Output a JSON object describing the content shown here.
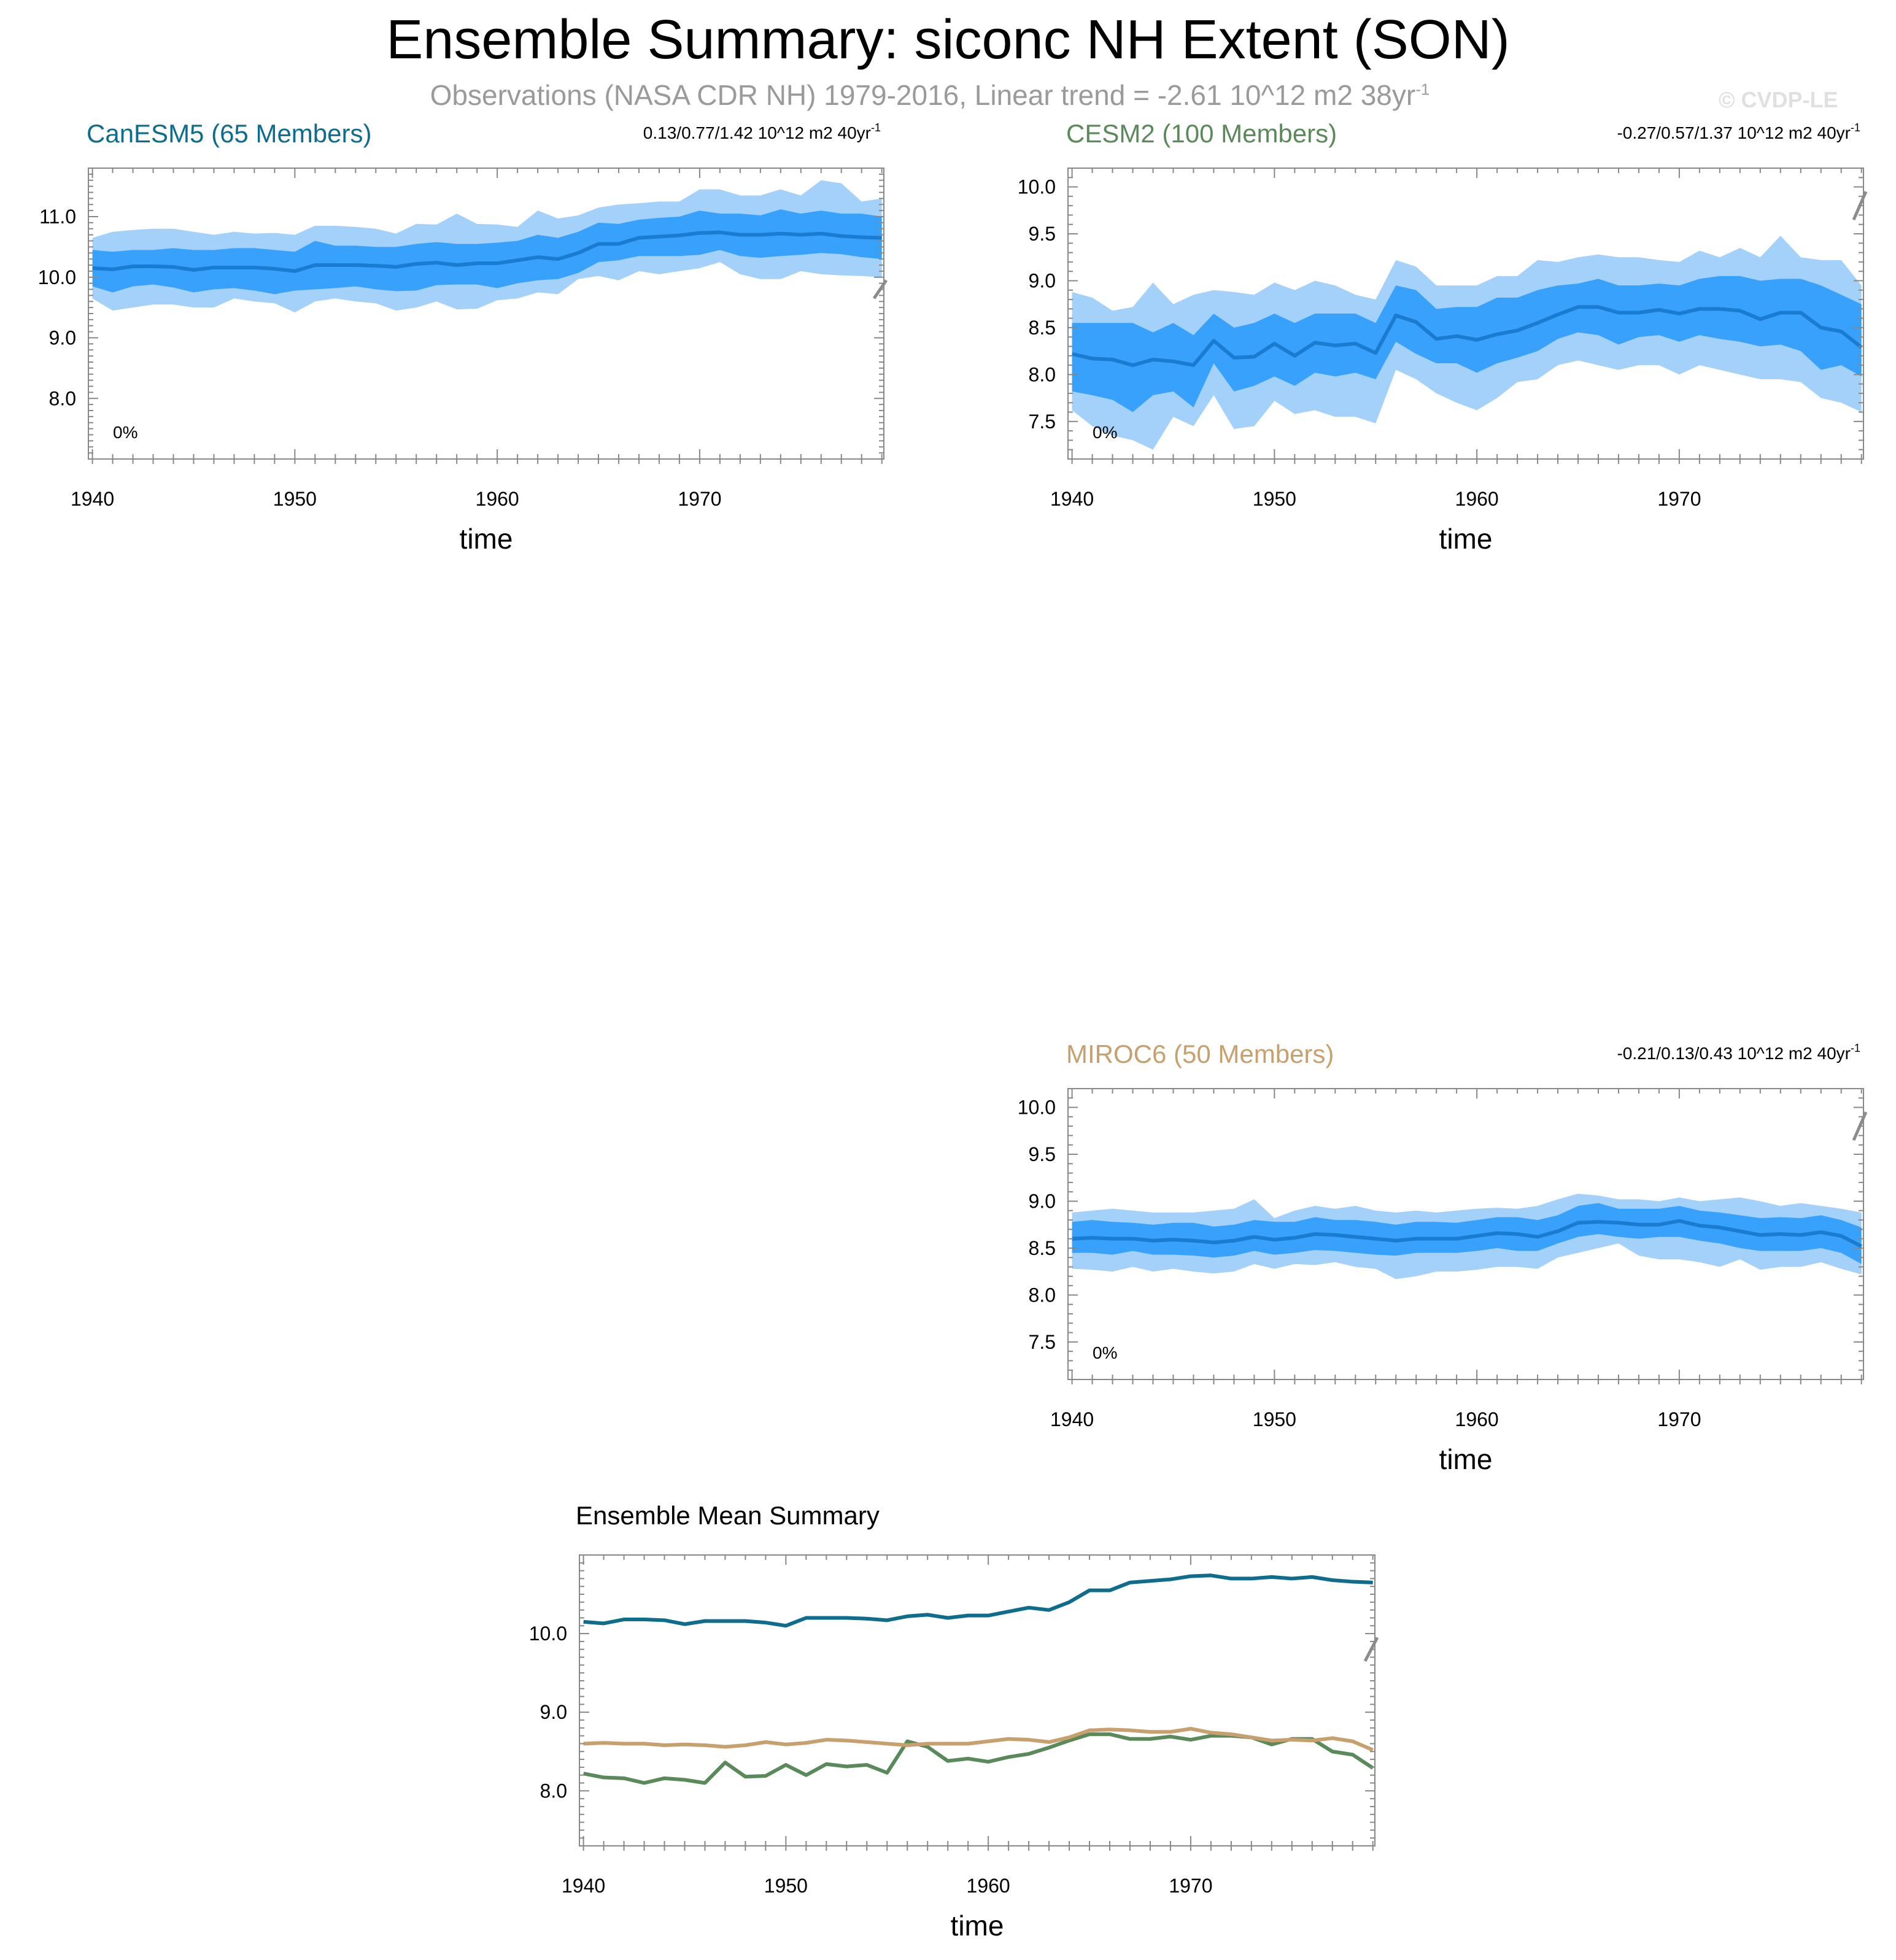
{
  "title": "Ensemble Summary: siconc NH Extent (SON)",
  "subtitle": {
    "text": "Observations (NASA CDR NH) 1979-2016, Linear trend = -2.61 10^12 m2 38yr",
    "sup": "-1"
  },
  "watermark": "© CVDP-LE",
  "chart_data": [
    {
      "type": "area",
      "title": "CanESM5 (65 Members)",
      "title_color": "#0e6c8d",
      "trend_label": "0.13/0.77/1.42 10^12 m2 40yr",
      "trend_sup": "-1",
      "percent_label": "0%",
      "xlabel": "time",
      "ylabel": "",
      "xlim": [
        1939.8,
        1979.1
      ],
      "ylim": [
        7.0,
        11.8
      ],
      "xticks": [
        1940,
        1950,
        1960,
        1970
      ],
      "xtick_labels": [
        "1940",
        "1950",
        "1960",
        "1970"
      ],
      "yticks": [
        8.0,
        9.0,
        10.0,
        11.0
      ],
      "ytick_labels": [
        "8.0",
        "9.0",
        "10.0",
        "11.0"
      ],
      "obs_trend_marker": [
        9.65,
        9.95
      ],
      "x": [
        1940,
        1941,
        1942,
        1943,
        1944,
        1945,
        1946,
        1947,
        1948,
        1949,
        1950,
        1951,
        1952,
        1953,
        1954,
        1955,
        1956,
        1957,
        1958,
        1959,
        1960,
        1961,
        1962,
        1963,
        1964,
        1965,
        1966,
        1967,
        1968,
        1969,
        1970,
        1971,
        1972,
        1973,
        1974,
        1975,
        1976,
        1977,
        1978,
        1979
      ],
      "mean": [
        10.15,
        10.13,
        10.18,
        10.18,
        10.17,
        10.12,
        10.16,
        10.16,
        10.16,
        10.14,
        10.1,
        10.2,
        10.2,
        10.2,
        10.19,
        10.17,
        10.22,
        10.24,
        10.2,
        10.23,
        10.23,
        10.28,
        10.33,
        10.3,
        10.4,
        10.55,
        10.55,
        10.65,
        10.67,
        10.69,
        10.73,
        10.74,
        10.7,
        10.7,
        10.72,
        10.7,
        10.72,
        10.68,
        10.66,
        10.65
      ],
      "p10": [
        9.85,
        9.75,
        9.85,
        9.88,
        9.83,
        9.75,
        9.8,
        9.82,
        9.78,
        9.72,
        9.78,
        9.8,
        9.82,
        9.85,
        9.8,
        9.77,
        9.78,
        9.87,
        9.88,
        9.88,
        9.82,
        9.9,
        9.95,
        9.97,
        10.07,
        10.25,
        10.28,
        10.35,
        10.35,
        10.35,
        10.37,
        10.45,
        10.35,
        10.32,
        10.35,
        10.37,
        10.4,
        10.38,
        10.33,
        10.3
      ],
      "p90": [
        10.45,
        10.42,
        10.45,
        10.45,
        10.48,
        10.45,
        10.45,
        10.48,
        10.48,
        10.45,
        10.42,
        10.6,
        10.52,
        10.52,
        10.5,
        10.5,
        10.55,
        10.58,
        10.55,
        10.55,
        10.57,
        10.6,
        10.7,
        10.65,
        10.75,
        10.9,
        10.88,
        10.95,
        10.98,
        11.0,
        11.1,
        11.05,
        11.05,
        11.02,
        11.12,
        11.05,
        11.1,
        11.05,
        11.05,
        11.0
      ],
      "min": [
        9.65,
        9.45,
        9.5,
        9.55,
        9.55,
        9.5,
        9.5,
        9.65,
        9.6,
        9.57,
        9.42,
        9.6,
        9.65,
        9.6,
        9.57,
        9.45,
        9.5,
        9.6,
        9.47,
        9.48,
        9.62,
        9.65,
        9.75,
        9.72,
        9.97,
        10.02,
        9.95,
        10.1,
        10.05,
        10.1,
        10.15,
        10.25,
        10.05,
        9.97,
        9.97,
        10.1,
        10.05,
        10.03,
        10.02,
        10.0
      ],
      "max": [
        10.65,
        10.75,
        10.78,
        10.8,
        10.8,
        10.75,
        10.7,
        10.75,
        10.72,
        10.73,
        10.7,
        10.85,
        10.85,
        10.83,
        10.8,
        10.72,
        10.88,
        10.87,
        11.05,
        10.88,
        10.87,
        10.83,
        11.1,
        10.97,
        11.02,
        11.15,
        11.2,
        11.22,
        11.25,
        11.25,
        11.45,
        11.45,
        11.35,
        11.35,
        11.45,
        11.35,
        11.6,
        11.55,
        11.25,
        11.3
      ]
    },
    {
      "type": "area",
      "title": "CESM2 (100 Members)",
      "title_color": "#5a8a5a",
      "trend_label": "-0.27/0.57/1.37 10^12 m2 40yr",
      "trend_sup": "-1",
      "percent_label": "0%",
      "xlabel": "time",
      "ylabel": "",
      "xlim": [
        1939.8,
        1979.1
      ],
      "ylim": [
        7.1,
        10.2
      ],
      "xticks": [
        1940,
        1950,
        1960,
        1970
      ],
      "xtick_labels": [
        "1940",
        "1950",
        "1960",
        "1970"
      ],
      "yticks": [
        7.5,
        8.0,
        8.5,
        9.0,
        9.5,
        10.0
      ],
      "ytick_labels": [
        "7.5",
        "8.0",
        "8.5",
        "9.0",
        "9.5",
        "10.0"
      ],
      "obs_trend_marker": [
        9.65,
        9.95
      ],
      "x": [
        1940,
        1941,
        1942,
        1943,
        1944,
        1945,
        1946,
        1947,
        1948,
        1949,
        1950,
        1951,
        1952,
        1953,
        1954,
        1955,
        1956,
        1957,
        1958,
        1959,
        1960,
        1961,
        1962,
        1963,
        1964,
        1965,
        1966,
        1967,
        1968,
        1969,
        1970,
        1971,
        1972,
        1973,
        1974,
        1975,
        1976,
        1977,
        1978,
        1979
      ],
      "mean": [
        8.22,
        8.17,
        8.16,
        8.1,
        8.16,
        8.14,
        8.1,
        8.36,
        8.18,
        8.19,
        8.33,
        8.2,
        8.34,
        8.31,
        8.33,
        8.23,
        8.63,
        8.56,
        8.38,
        8.41,
        8.37,
        8.43,
        8.47,
        8.55,
        8.64,
        8.72,
        8.72,
        8.66,
        8.66,
        8.69,
        8.65,
        8.7,
        8.7,
        8.68,
        8.59,
        8.66,
        8.66,
        8.5,
        8.46,
        8.29
      ],
      "p10": [
        7.82,
        7.78,
        7.73,
        7.6,
        7.78,
        7.82,
        7.65,
        8.12,
        7.82,
        7.88,
        7.98,
        7.88,
        8.02,
        7.98,
        8.02,
        7.95,
        8.35,
        8.22,
        8.12,
        8.12,
        8.02,
        8.12,
        8.18,
        8.25,
        8.38,
        8.45,
        8.42,
        8.32,
        8.4,
        8.42,
        8.35,
        8.42,
        8.38,
        8.35,
        8.3,
        8.32,
        8.25,
        8.05,
        8.1,
        7.98
      ],
      "p90": [
        8.55,
        8.55,
        8.55,
        8.55,
        8.45,
        8.55,
        8.42,
        8.65,
        8.5,
        8.55,
        8.65,
        8.55,
        8.65,
        8.65,
        8.65,
        8.55,
        8.95,
        8.9,
        8.7,
        8.72,
        8.72,
        8.82,
        8.82,
        8.9,
        8.95,
        8.97,
        9.02,
        8.95,
        8.95,
        8.97,
        8.95,
        9.02,
        9.05,
        9.05,
        9.0,
        9.02,
        9.02,
        8.95,
        8.85,
        8.75
      ],
      "min": [
        7.62,
        7.45,
        7.35,
        7.3,
        7.2,
        7.55,
        7.45,
        7.78,
        7.42,
        7.45,
        7.72,
        7.58,
        7.62,
        7.55,
        7.55,
        7.48,
        8.05,
        7.95,
        7.8,
        7.7,
        7.62,
        7.75,
        7.92,
        7.95,
        8.1,
        8.15,
        8.1,
        8.05,
        8.1,
        8.1,
        8.0,
        8.1,
        8.05,
        8.0,
        7.95,
        7.95,
        7.92,
        7.75,
        7.7,
        7.6
      ],
      "max": [
        8.88,
        8.82,
        8.68,
        8.72,
        8.98,
        8.75,
        8.85,
        8.9,
        8.88,
        8.85,
        8.98,
        8.9,
        9.0,
        8.95,
        8.85,
        8.8,
        9.22,
        9.15,
        8.95,
        8.95,
        8.95,
        9.05,
        9.05,
        9.22,
        9.2,
        9.25,
        9.28,
        9.25,
        9.25,
        9.22,
        9.2,
        9.32,
        9.25,
        9.35,
        9.25,
        9.48,
        9.25,
        9.22,
        9.22,
        8.95
      ]
    },
    {
      "type": "area",
      "title": "MIROC6 (50 Members)",
      "title_color": "#c8a06e",
      "trend_label": "-0.21/0.13/0.43 10^12 m2 40yr",
      "trend_sup": "-1",
      "percent_label": "0%",
      "xlabel": "time",
      "ylabel": "",
      "xlim": [
        1939.8,
        1979.1
      ],
      "ylim": [
        7.1,
        10.2
      ],
      "xticks": [
        1940,
        1950,
        1960,
        1970
      ],
      "xtick_labels": [
        "1940",
        "1950",
        "1960",
        "1970"
      ],
      "yticks": [
        7.5,
        8.0,
        8.5,
        9.0,
        9.5,
        10.0
      ],
      "ytick_labels": [
        "7.5",
        "8.0",
        "8.5",
        "9.0",
        "9.5",
        "10.0"
      ],
      "obs_trend_marker": [
        9.65,
        9.95
      ],
      "x": [
        1940,
        1941,
        1942,
        1943,
        1944,
        1945,
        1946,
        1947,
        1948,
        1949,
        1950,
        1951,
        1952,
        1953,
        1954,
        1955,
        1956,
        1957,
        1958,
        1959,
        1960,
        1961,
        1962,
        1963,
        1964,
        1965,
        1966,
        1967,
        1968,
        1969,
        1970,
        1971,
        1972,
        1973,
        1974,
        1975,
        1976,
        1977,
        1978,
        1979
      ],
      "mean": [
        8.6,
        8.61,
        8.6,
        8.6,
        8.58,
        8.59,
        8.58,
        8.56,
        8.58,
        8.62,
        8.59,
        8.61,
        8.65,
        8.64,
        8.62,
        8.6,
        8.58,
        8.6,
        8.6,
        8.6,
        8.63,
        8.66,
        8.65,
        8.62,
        8.68,
        8.77,
        8.78,
        8.77,
        8.75,
        8.75,
        8.79,
        8.74,
        8.72,
        8.68,
        8.64,
        8.65,
        8.64,
        8.67,
        8.63,
        8.52
      ],
      "p10": [
        8.45,
        8.45,
        8.43,
        8.47,
        8.43,
        8.43,
        8.42,
        8.4,
        8.42,
        8.47,
        8.43,
        8.45,
        8.48,
        8.47,
        8.45,
        8.43,
        8.42,
        8.45,
        8.45,
        8.45,
        8.47,
        8.5,
        8.47,
        8.47,
        8.55,
        8.62,
        8.65,
        8.62,
        8.6,
        8.62,
        8.62,
        8.58,
        8.55,
        8.5,
        8.47,
        8.47,
        8.47,
        8.5,
        8.45,
        8.33
      ],
      "p90": [
        8.78,
        8.8,
        8.78,
        8.77,
        8.75,
        8.77,
        8.77,
        8.73,
        8.75,
        8.8,
        8.78,
        8.78,
        8.83,
        8.8,
        8.8,
        8.78,
        8.75,
        8.78,
        8.78,
        8.77,
        8.8,
        8.83,
        8.83,
        8.8,
        8.85,
        8.95,
        8.98,
        8.92,
        8.92,
        8.92,
        8.95,
        8.9,
        8.88,
        8.85,
        8.82,
        8.83,
        8.82,
        8.85,
        8.8,
        8.72
      ],
      "min": [
        8.28,
        8.27,
        8.25,
        8.3,
        8.25,
        8.28,
        8.25,
        8.23,
        8.25,
        8.33,
        8.28,
        8.33,
        8.32,
        8.35,
        8.3,
        8.28,
        8.17,
        8.2,
        8.25,
        8.25,
        8.27,
        8.3,
        8.3,
        8.28,
        8.4,
        8.45,
        8.5,
        8.55,
        8.42,
        8.38,
        8.38,
        8.35,
        8.3,
        8.38,
        8.27,
        8.3,
        8.3,
        8.35,
        8.28,
        8.22
      ],
      "max": [
        8.88,
        8.9,
        8.92,
        8.9,
        8.88,
        8.88,
        8.88,
        8.9,
        8.92,
        9.02,
        8.82,
        8.9,
        8.95,
        8.92,
        8.95,
        8.9,
        8.88,
        8.9,
        8.88,
        8.9,
        8.92,
        8.93,
        8.92,
        8.95,
        9.02,
        9.08,
        9.06,
        9.02,
        9.02,
        9.0,
        9.04,
        9.0,
        9.02,
        9.04,
        9.0,
        8.95,
        8.98,
        8.95,
        8.92,
        8.88
      ]
    },
    {
      "type": "line",
      "title": "Ensemble Mean Summary",
      "xlabel": "time",
      "ylabel": "",
      "xlim": [
        1939.8,
        1979.1
      ],
      "ylim": [
        7.3,
        11.0
      ],
      "xticks": [
        1940,
        1950,
        1960,
        1970
      ],
      "xtick_labels": [
        "1940",
        "1950",
        "1960",
        "1970"
      ],
      "yticks": [
        8.0,
        9.0,
        10.0
      ],
      "ytick_labels": [
        "8.0",
        "9.0",
        "10.0"
      ],
      "obs_trend_marker": [
        9.65,
        9.95
      ],
      "x": [
        1940,
        1941,
        1942,
        1943,
        1944,
        1945,
        1946,
        1947,
        1948,
        1949,
        1950,
        1951,
        1952,
        1953,
        1954,
        1955,
        1956,
        1957,
        1958,
        1959,
        1960,
        1961,
        1962,
        1963,
        1964,
        1965,
        1966,
        1967,
        1968,
        1969,
        1970,
        1971,
        1972,
        1973,
        1974,
        1975,
        1976,
        1977,
        1978,
        1979
      ],
      "series": [
        {
          "name": "CanESM5",
          "color": "#0e6c8d",
          "values": [
            10.15,
            10.13,
            10.18,
            10.18,
            10.17,
            10.12,
            10.16,
            10.16,
            10.16,
            10.14,
            10.1,
            10.2,
            10.2,
            10.2,
            10.19,
            10.17,
            10.22,
            10.24,
            10.2,
            10.23,
            10.23,
            10.28,
            10.33,
            10.3,
            10.4,
            10.55,
            10.55,
            10.65,
            10.67,
            10.69,
            10.73,
            10.74,
            10.7,
            10.7,
            10.72,
            10.7,
            10.72,
            10.68,
            10.66,
            10.65
          ]
        },
        {
          "name": "CESM2",
          "color": "#5a8a5a",
          "values": [
            8.22,
            8.17,
            8.16,
            8.1,
            8.16,
            8.14,
            8.1,
            8.36,
            8.18,
            8.19,
            8.33,
            8.2,
            8.34,
            8.31,
            8.33,
            8.23,
            8.63,
            8.56,
            8.38,
            8.41,
            8.37,
            8.43,
            8.47,
            8.55,
            8.64,
            8.72,
            8.72,
            8.66,
            8.66,
            8.69,
            8.65,
            8.7,
            8.7,
            8.68,
            8.59,
            8.66,
            8.66,
            8.5,
            8.46,
            8.29
          ]
        },
        {
          "name": "MIROC6",
          "color": "#c8a06e",
          "values": [
            8.6,
            8.61,
            8.6,
            8.6,
            8.58,
            8.59,
            8.58,
            8.56,
            8.58,
            8.62,
            8.59,
            8.61,
            8.65,
            8.64,
            8.62,
            8.6,
            8.58,
            8.6,
            8.6,
            8.6,
            8.63,
            8.66,
            8.65,
            8.62,
            8.68,
            8.77,
            8.78,
            8.77,
            8.75,
            8.75,
            8.79,
            8.74,
            8.72,
            8.68,
            8.64,
            8.65,
            8.64,
            8.67,
            8.63,
            8.52
          ]
        }
      ]
    }
  ]
}
